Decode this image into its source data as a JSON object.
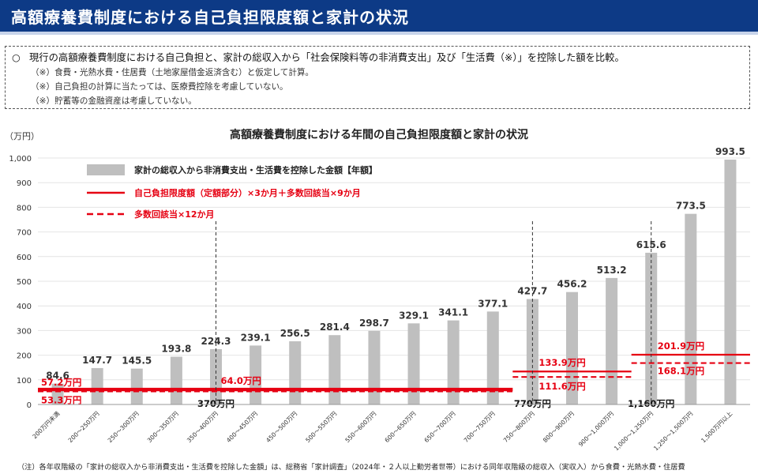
{
  "header": {
    "title": "高額療養費制度における自己負担限度額と家計の状況"
  },
  "notes": {
    "main_mark": "○",
    "main": "現行の高額療養費制度における自己負担と、家計の総収入から「社会保険料等の非消費支出」及び「生活費（※）」を控除した額を比較。",
    "sub": [
      "（※）食費・光熱水費・住居費（土地家屋借金返済含む）と仮定して計算。",
      "（※）自己負担の計算に当たっては、医療費控除を考慮していない。",
      "（※）貯蓄等の金融資産は考慮していない。"
    ]
  },
  "footer": {
    "text": "（注）各年収階級の「家計の総収入から非消費支出・生活費を控除した金額」は、総務省「家計調査」（2024年・２人以上勤労者世帯）における同年収階級の総収入（実収入）から食費・光熱水費・住居費"
  },
  "colors": {
    "header": "#0d3a86",
    "bar": "#bfbfbf",
    "red": "#e60012"
  },
  "chart_data": {
    "type": "bar",
    "title": "高額療養費制度における年間の自己負担限度額と家計の状況",
    "ylabel": "（万円）",
    "ylim": [
      0,
      1000
    ],
    "yticks": [
      0,
      100,
      200,
      300,
      400,
      500,
      600,
      700,
      800,
      900,
      1000
    ],
    "ytick_labels": [
      "0",
      "100",
      "200",
      "300",
      "400",
      "500",
      "600",
      "700",
      "800",
      "900",
      "1,000"
    ],
    "categories": [
      "200万円未満",
      "200〜250万円",
      "250〜300万円",
      "300〜350万円",
      "350〜400万円",
      "400〜450万円",
      "450〜500万円",
      "500〜550万円",
      "550〜600万円",
      "600〜650万円",
      "650〜700万円",
      "700〜750万円",
      "750〜800万円",
      "800〜900万円",
      "900〜1,000万円",
      "1,000〜1,250万円",
      "1,250〜1,500万円",
      "1,500万円以上"
    ],
    "values": [
      84.6,
      147.7,
      145.5,
      193.8,
      224.3,
      239.1,
      256.5,
      281.4,
      298.7,
      329.1,
      341.1,
      377.1,
      427.7,
      456.2,
      513.2,
      615.6,
      773.5,
      993.5
    ],
    "value_labels": [
      "84.6",
      "147.7",
      "145.5",
      "193.8",
      "224.3",
      "239.1",
      "256.5",
      "281.4",
      "298.7",
      "329.1",
      "341.1",
      "377.1",
      "427.7",
      "456.2",
      "513.2",
      "615.6",
      "773.5",
      "993.5"
    ],
    "legend": [
      {
        "label": "家計の総収入から非消費支出・生活費を控除した金額【年額】",
        "style": "bar"
      },
      {
        "label": "自己負担限度額（定額部分）×3か月＋多数回該当×9か月",
        "style": "solid"
      },
      {
        "label": "多数回該当×12か月",
        "style": "dashed"
      }
    ],
    "solid_line": [
      {
        "from": 0,
        "to": 12,
        "value": 57.2,
        "label": "57.2万円"
      },
      {
        "from": 0,
        "to": 12,
        "value": 64.0,
        "label": "64.0万円"
      },
      {
        "from": 12,
        "to": 15,
        "value": 133.9,
        "label": "133.9万円"
      },
      {
        "from": 15,
        "to": 17,
        "value": 201.9,
        "label": "201.9万円"
      }
    ],
    "dashed_line": [
      {
        "from": 0,
        "to": 12,
        "value": 53.3,
        "label": "53.3万円"
      },
      {
        "from": 12,
        "to": 15,
        "value": 111.6,
        "label": "111.6万円"
      },
      {
        "from": 15,
        "to": 17,
        "value": 168.1,
        "label": "168.1万円"
      }
    ],
    "thresholds": [
      {
        "after_index": 4,
        "label": "370万円"
      },
      {
        "after_index": 12,
        "label": "770万円"
      },
      {
        "after_index": 15,
        "label": "1,160万円"
      }
    ]
  }
}
